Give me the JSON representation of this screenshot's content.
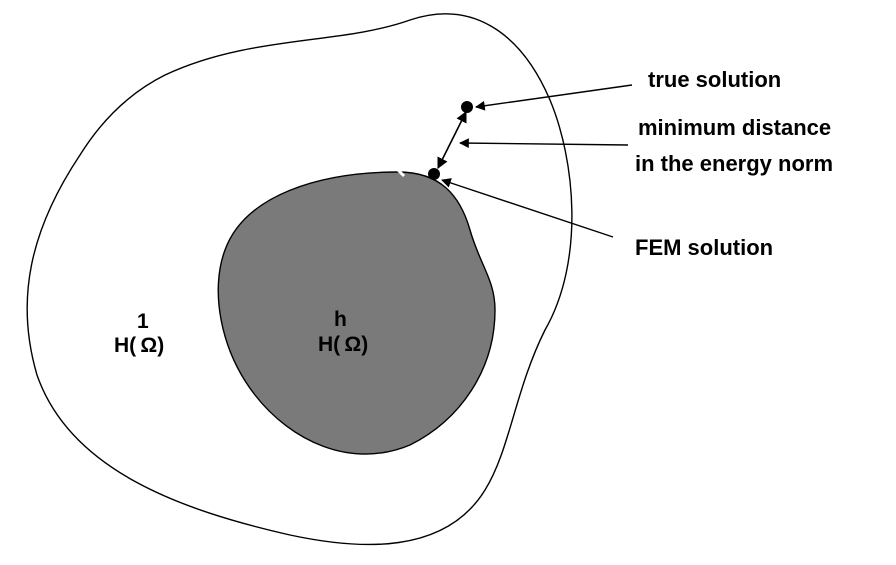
{
  "outer_space": {
    "superscript": "1",
    "label": "H( Ω)"
  },
  "inner_space": {
    "superscript": "h",
    "label": "H( Ω)"
  },
  "callouts": {
    "true_solution": "true solution",
    "min_distance_line1": "minimum distance",
    "min_distance_line2": "in the energy norm",
    "fem_solution": "FEM solution"
  },
  "colors": {
    "inner_fill": "#7a7a7a",
    "outline": "#000000",
    "background": "#ffffff"
  }
}
